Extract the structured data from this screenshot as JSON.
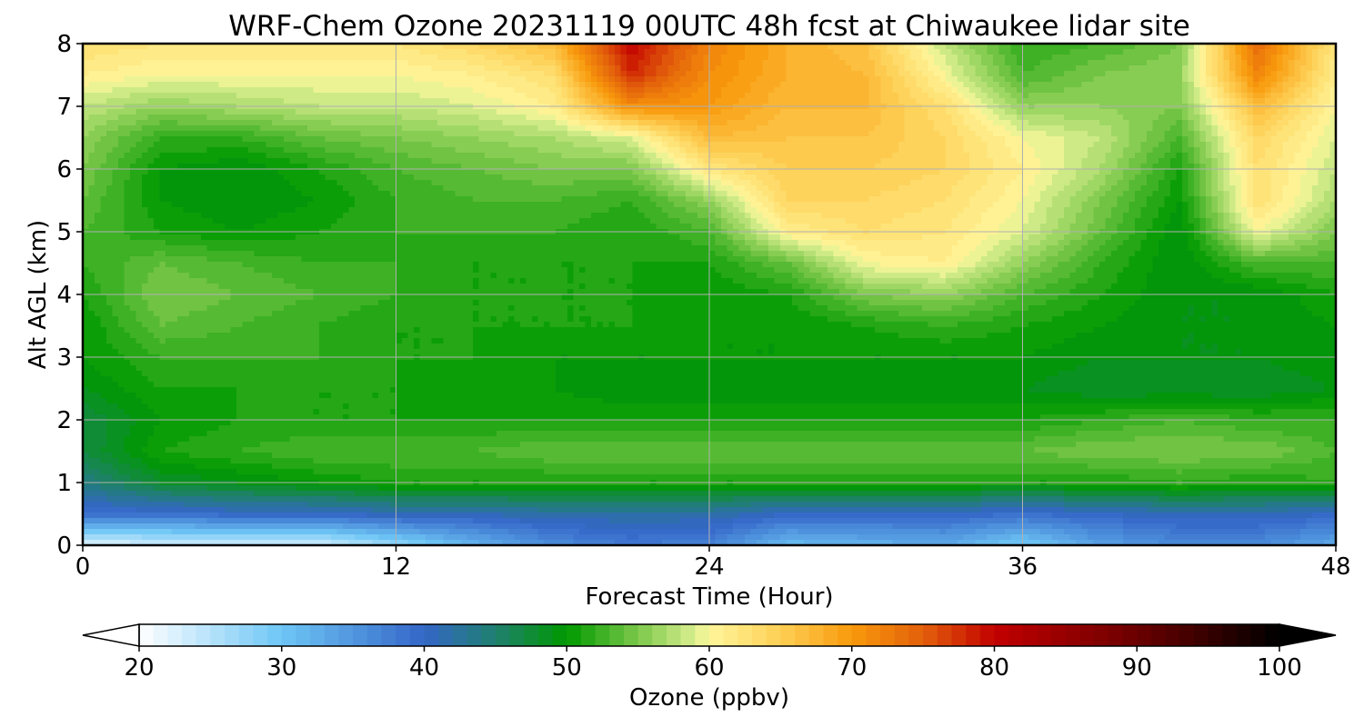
{
  "chart_data": {
    "type": "heatmap",
    "title": "WRF-Chem Ozone  20231119 00UTC 48h fcst at Chiwaukee lidar site",
    "xlabel": "Forecast Time (Hour)",
    "ylabel": "Alt AGL (km)",
    "xlim": [
      0,
      48
    ],
    "ylim": [
      0,
      8
    ],
    "x_ticks": [
      0,
      12,
      24,
      36,
      48
    ],
    "y_ticks": [
      0,
      1,
      2,
      3,
      4,
      5,
      6,
      7,
      8
    ],
    "grid": true,
    "x": [
      0,
      3,
      6,
      9,
      12,
      15,
      18,
      21,
      24,
      27,
      30,
      33,
      36,
      39,
      42,
      45,
      48
    ],
    "y": [
      0,
      0.5,
      1,
      1.5,
      2,
      2.5,
      3,
      3.5,
      4,
      4.5,
      5,
      5.5,
      6,
      6.5,
      7,
      7.5,
      8
    ],
    "z": [
      [
        22,
        23,
        23,
        23,
        27,
        32,
        36,
        38,
        37,
        31,
        32,
        33,
        29,
        34,
        36,
        36,
        33
      ],
      [
        39,
        39,
        40,
        40,
        41,
        41,
        42,
        42,
        42,
        40,
        40,
        40,
        39,
        40,
        41,
        41,
        40
      ],
      [
        44,
        48,
        49,
        50,
        51,
        51,
        51,
        51,
        51,
        51,
        51,
        51,
        51,
        51,
        52,
        51,
        52
      ],
      [
        47,
        51,
        52,
        53,
        53,
        53,
        54,
        54,
        54,
        54,
        54,
        54,
        54,
        55,
        55,
        55,
        53
      ],
      [
        47,
        50,
        51,
        51,
        51,
        51,
        51,
        51,
        51,
        51,
        51,
        51,
        51,
        52,
        53,
        52,
        52
      ],
      [
        49,
        51,
        51,
        51,
        51,
        50,
        50,
        49,
        49,
        49,
        49,
        49,
        49,
        48,
        48,
        48,
        49
      ],
      [
        50,
        52,
        52,
        52,
        51,
        51,
        50,
        50,
        50,
        50,
        50,
        50,
        50,
        49,
        49,
        49,
        50
      ],
      [
        50,
        54,
        53,
        52,
        51,
        51,
        51,
        51,
        50,
        50,
        51,
        52,
        51,
        50,
        49,
        49,
        50
      ],
      [
        51,
        55,
        54,
        53,
        52,
        51,
        51,
        51,
        50,
        51,
        55,
        56,
        53,
        51,
        49,
        49,
        51
      ],
      [
        52,
        54,
        53,
        52,
        52,
        51,
        51,
        51,
        51,
        54,
        60,
        61,
        56,
        52,
        49,
        53,
        53
      ],
      [
        53,
        51,
        50,
        51,
        52,
        52,
        52,
        51,
        53,
        61,
        63,
        62,
        59,
        54,
        49,
        60,
        55
      ],
      [
        54,
        50,
        49,
        50,
        52,
        53,
        53,
        52,
        56,
        64,
        64,
        63,
        60,
        55,
        50,
        63,
        57
      ],
      [
        55,
        50,
        49,
        51,
        53,
        54,
        55,
        55,
        62,
        65,
        65,
        64,
        61,
        57,
        51,
        63,
        58
      ],
      [
        56,
        52,
        52,
        54,
        55,
        56,
        57,
        59,
        67,
        66,
        66,
        64,
        60,
        58,
        53,
        64,
        59
      ],
      [
        58,
        56,
        57,
        58,
        58,
        59,
        61,
        71,
        70,
        67,
        67,
        63,
        56,
        56,
        55,
        67,
        60
      ],
      [
        61,
        60,
        60,
        60,
        60,
        61,
        63,
        78,
        71,
        68,
        67,
        60,
        53,
        55,
        56,
        72,
        61
      ],
      [
        63,
        62,
        62,
        62,
        62,
        64,
        67,
        80,
        72,
        68,
        66,
        58,
        52,
        53,
        55,
        74,
        62
      ]
    ],
    "colorbar": {
      "label": "Ozone  (ppbv)",
      "min": 20,
      "max": 100,
      "step": 1,
      "ticks": [
        20,
        30,
        40,
        50,
        60,
        70,
        80,
        90,
        100
      ],
      "extend": "both"
    },
    "colormap": [
      [
        20,
        "#ffffff"
      ],
      [
        30,
        "#6ec6f5"
      ],
      [
        40,
        "#3466c8"
      ],
      [
        45,
        "#1f7f6e"
      ],
      [
        50,
        "#009900"
      ],
      [
        55,
        "#7cc84a"
      ],
      [
        59,
        "#d9ef8f"
      ],
      [
        60,
        "#fff69b"
      ],
      [
        65,
        "#fdcf55"
      ],
      [
        70,
        "#f89a0c"
      ],
      [
        75,
        "#e35f0b"
      ],
      [
        80,
        "#c20000"
      ],
      [
        90,
        "#6b0000"
      ],
      [
        100,
        "#000000"
      ]
    ]
  }
}
